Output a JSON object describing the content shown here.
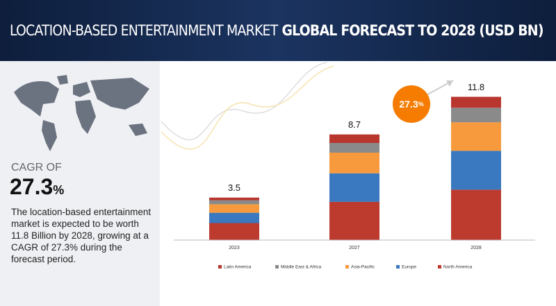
{
  "header": {
    "title": "LOCATION-BASED ENTERTAINMENT MARKET",
    "subtitle": "GLOBAL FORECAST TO 2028 (USD BN)"
  },
  "sidebar": {
    "cagr_label": "CAGR OF",
    "cagr_value": 27.3,
    "cagr_unit": "%",
    "description": "The location-based entertainment market is expected to be worth 11.8 Billion by 2028, growing at a CAGR of 27.3% during the forecast period."
  },
  "chart_data": {
    "type": "stacked_bar",
    "categories": [
      "2023",
      "2027",
      "2028"
    ],
    "totals": [
      3.5,
      8.7,
      11.8
    ],
    "cagr_badge": {
      "value": 27.3,
      "unit": "%"
    },
    "series": [
      {
        "name": "Latin America",
        "color": "#b8362e",
        "values": [
          0.22,
          0.7,
          0.9
        ]
      },
      {
        "name": "Middle East & Africa",
        "color": "#8a8a8a",
        "values": [
          0.33,
          0.8,
          1.2
        ]
      },
      {
        "name": "Asia-Pacific",
        "color": "#f79a3e",
        "values": [
          0.7,
          1.7,
          2.35
        ]
      },
      {
        "name": "Europe",
        "color": "#3a78bf",
        "values": [
          0.85,
          2.35,
          3.2
        ]
      },
      {
        "name": "North America",
        "color": "#bd3a2f",
        "values": [
          1.4,
          3.15,
          4.15
        ]
      }
    ]
  }
}
